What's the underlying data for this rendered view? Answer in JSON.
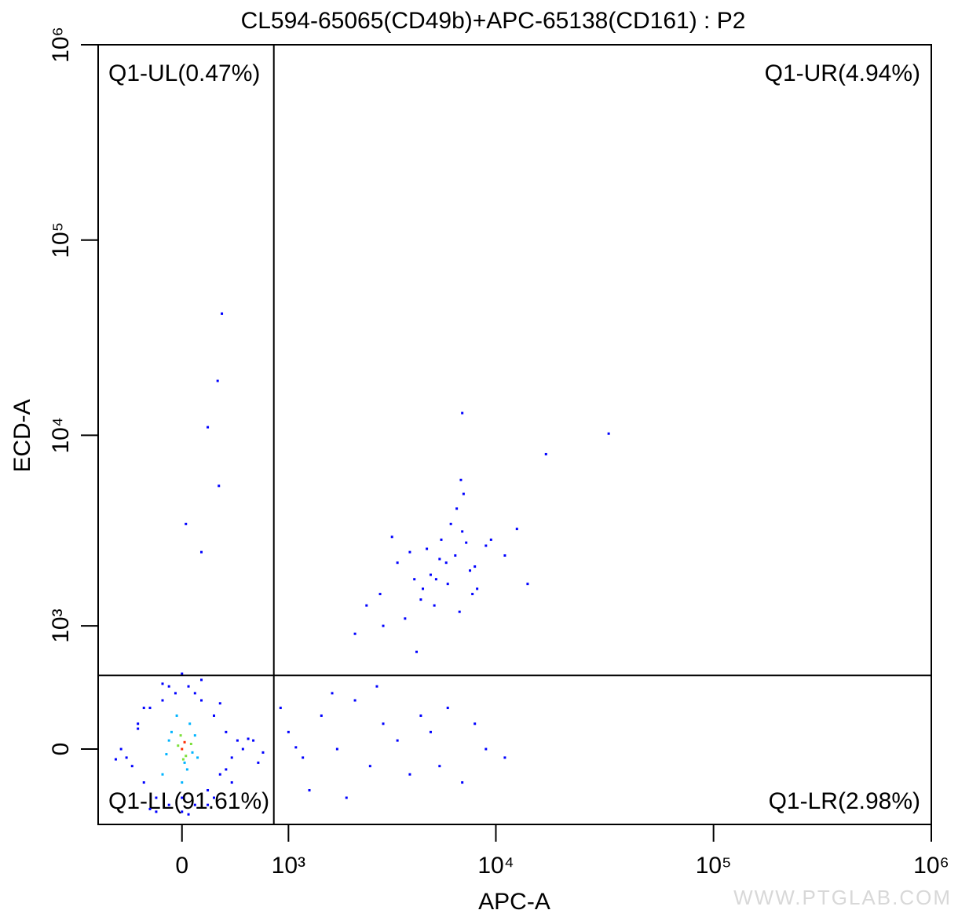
{
  "chart_data": {
    "type": "scatter",
    "title": "CL594-65065(CD49b)+APC-65138(CD161) : P2",
    "xlabel": "APC-A",
    "ylabel": "ECD-A",
    "scale": "biexponential",
    "xlim": [
      -730,
      1000000
    ],
    "ylim": [
      -500,
      1000000
    ],
    "xticks": [
      0,
      {
        "value": 1000,
        "label": "10³"
      },
      {
        "value": 10000,
        "label": "10⁴"
      },
      {
        "value": 100000,
        "label": "10⁵"
      },
      {
        "value": 1000000,
        "label": "10⁶"
      }
    ],
    "yticks": [
      0,
      {
        "value": 1000,
        "label": "10³"
      },
      {
        "value": 10000,
        "label": "10⁴"
      },
      {
        "value": 100000,
        "label": "10⁵"
      },
      {
        "value": 1000000,
        "label": "10⁶"
      }
    ],
    "gate": {
      "x": 820,
      "y": 486
    },
    "quadrant_labels": {
      "UL": "Q1-UL(0.47%)",
      "UR": "Q1-UR(4.94%)",
      "LL": "Q1-LL(91.61%)",
      "LR": "Q1-LR(2.98%)"
    },
    "watermark": "WWW.PTGLAB.COM",
    "series": [
      {
        "color": "#0000ff",
        "x": [
          2900,
          3500,
          4200,
          4800,
          5200,
          5600,
          6000,
          6500,
          7000,
          7600,
          8200,
          9000,
          3800,
          4500,
          5000,
          5500,
          6200,
          6800,
          7300,
          8000,
          3000,
          3300,
          4000,
          4600,
          5300,
          5900,
          6600,
          7100,
          7800,
          9500,
          11000,
          12500,
          14000,
          2500,
          2200,
          6900,
          17000,
          33000,
          7000,
          4300,
          315,
          280,
          200,
          290,
          30,
          150,
          1000,
          1200,
          1500,
          1800,
          2200,
          2600,
          3000,
          3500,
          4000,
          5000,
          6000,
          7000,
          9000,
          11000,
          1300,
          1700,
          2000,
          2800,
          4500,
          5500,
          8000,
          600,
          700,
          900,
          1100,
          -500,
          -400,
          -350,
          -300,
          -250,
          -200,
          -150,
          -100,
          -50,
          0,
          50,
          100,
          150,
          200,
          250,
          300,
          350,
          400,
          450,
          500,
          -450,
          -300,
          -200,
          -100,
          0,
          100,
          200,
          300,
          400,
          -250,
          -150,
          50,
          150,
          250,
          -350,
          350,
          550,
          650,
          -550,
          0
        ],
        "values": [
          1500,
          2200,
          1800,
          2600,
          1300,
          2900,
          1700,
          2400,
          3200,
          2000,
          1600,
          2700,
          1100,
          1400,
          1900,
          2300,
          3500,
          1200,
          2800,
          2100,
          1000,
          3000,
          2500,
          1600,
          1800,
          2200,
          4200,
          5000,
          1500,
          2900,
          2400,
          3300,
          1700,
          1300,
          900,
          5900,
          8000,
          10200,
          13000,
          700,
          42000,
          19000,
          11000,
          5500,
          3500,
          2500,
          100,
          -50,
          200,
          0,
          300,
          -100,
          150,
          50,
          -150,
          100,
          250,
          -200,
          0,
          -50,
          -250,
          350,
          -300,
          400,
          200,
          -100,
          150,
          50,
          -20,
          250,
          10,
          0,
          -100,
          150,
          -200,
          250,
          -300,
          300,
          -350,
          350,
          -400,
          400,
          -350,
          300,
          -250,
          200,
          -150,
          100,
          -50,
          50,
          0,
          -50,
          250,
          -400,
          400,
          -300,
          350,
          -350,
          280,
          -200,
          -380,
          420,
          -420,
          450,
          -300,
          120,
          -120,
          60,
          -80,
          -60,
          500
        ]
      },
      {
        "color": "#00b4ff",
        "x": [
          -150,
          -80,
          0,
          60,
          120,
          -100,
          40,
          100,
          -40,
          20,
          80,
          -120
        ],
        "values": [
          -150,
          100,
          -200,
          150,
          -50,
          50,
          -120,
          80,
          200,
          -80,
          -20,
          -30
        ]
      },
      {
        "color": "#7de03c",
        "x": [
          -30,
          30,
          70,
          -10,
          10
        ],
        "values": [
          20,
          -40,
          30,
          80,
          -60
        ]
      },
      {
        "color": "#ff2a00",
        "x": [
          0,
          20
        ],
        "values": [
          0,
          40
        ]
      }
    ]
  }
}
